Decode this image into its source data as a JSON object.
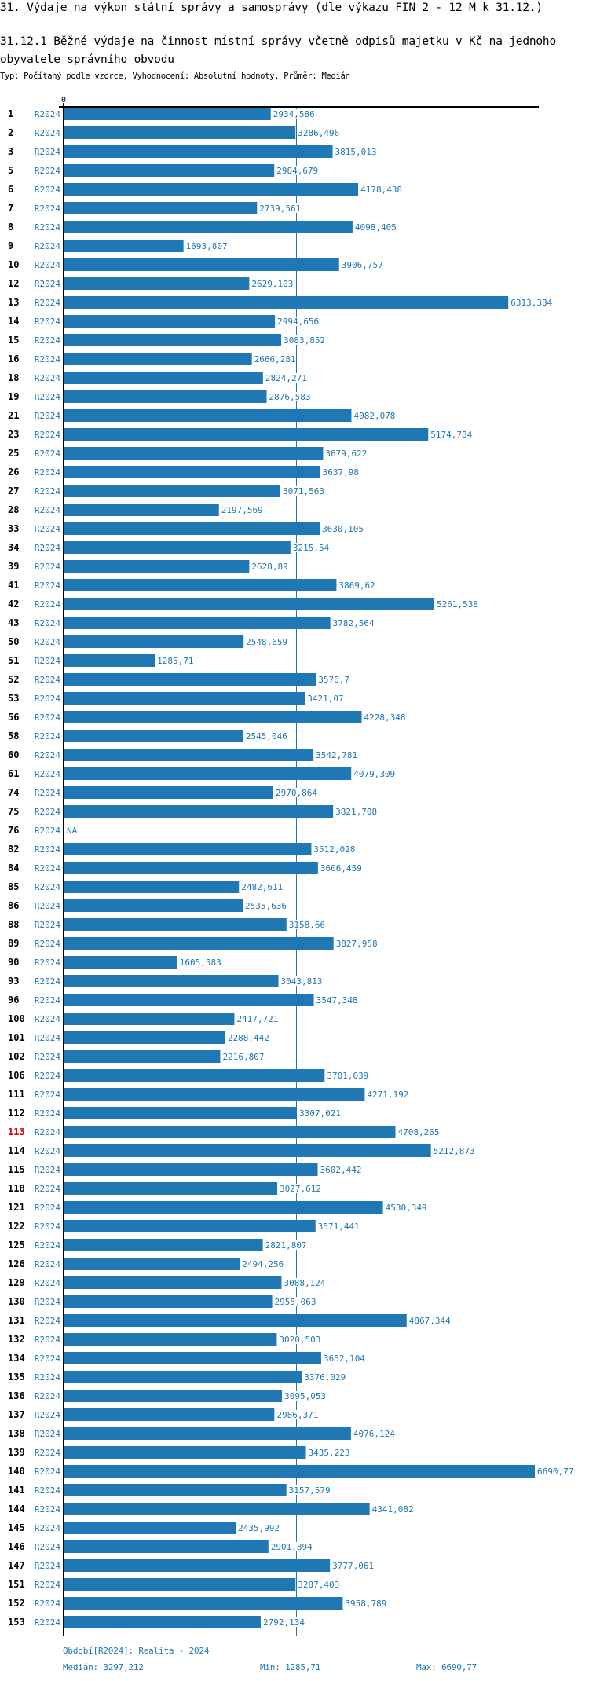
{
  "header": {
    "title": "31. Výdaje na výkon státní správy a samosprávy (dle výkazu FIN 2 - 12 M k 31.12.)",
    "subtitle": "31.12.1 Běžné výdaje na činnost místní správy včetně odpisů majetku v Kč na jednoho obyvatele správního obvodu",
    "meta": "Typ: Počítaný podle vzorce, Vyhodnocení: Absolutní hodnoty, Průměr: Medián"
  },
  "footer": {
    "period": "Období[R2024]: Realita - 2024",
    "median": "Medián: 3297,212",
    "min": "Min: 1285,71",
    "max": "Max: 6690,77"
  },
  "colors": {
    "bar": "#1f77b4",
    "highlight": "#e00000",
    "axis": "#000000"
  },
  "chart_data": {
    "type": "bar",
    "orientation": "horizontal",
    "title": "31.12.1 Běžné výdaje na činnost místní správy včetně odpisů majetku v Kč na jednoho obyvatele správního obvodu",
    "xlabel": "",
    "ylabel": "",
    "xlim": [
      0,
      6690.77
    ],
    "x_tick_labels": [
      "0"
    ],
    "grid": false,
    "series_label": "R2024",
    "reference_line": {
      "name": "Medián",
      "value": 3297.212
    },
    "highlighted_category": "113",
    "categories": [
      "1",
      "2",
      "3",
      "5",
      "6",
      "7",
      "8",
      "9",
      "10",
      "12",
      "13",
      "14",
      "15",
      "16",
      "18",
      "19",
      "21",
      "23",
      "25",
      "26",
      "27",
      "28",
      "33",
      "34",
      "39",
      "41",
      "42",
      "43",
      "50",
      "51",
      "52",
      "53",
      "56",
      "58",
      "60",
      "61",
      "74",
      "75",
      "76",
      "82",
      "84",
      "85",
      "86",
      "88",
      "89",
      "90",
      "93",
      "96",
      "100",
      "101",
      "102",
      "106",
      "111",
      "112",
      "113",
      "114",
      "115",
      "118",
      "121",
      "122",
      "125",
      "126",
      "129",
      "130",
      "131",
      "132",
      "134",
      "135",
      "136",
      "137",
      "138",
      "139",
      "140",
      "141",
      "144",
      "145",
      "146",
      "147",
      "151",
      "152",
      "153"
    ],
    "values": [
      2934.586,
      3286.496,
      3815.013,
      2984.679,
      4178.438,
      2739.561,
      4098.405,
      1693.807,
      3906.757,
      2629.103,
      6313.384,
      2994.656,
      3083.852,
      2666.281,
      2824.271,
      2876.583,
      4082.078,
      5174.784,
      3679.622,
      3637.98,
      3071.563,
      2197.569,
      3630.105,
      3215.54,
      2628.89,
      3869.62,
      5261.538,
      3782.564,
      2548.659,
      1285.71,
      3576.7,
      3421.07,
      4228.348,
      2545.046,
      3542.781,
      4079.309,
      2970.864,
      3821.708,
      null,
      3512.028,
      3606.459,
      2482.611,
      2535.636,
      3158.66,
      3827.958,
      1605.583,
      3043.813,
      3547.348,
      2417.721,
      2288.442,
      2216.807,
      3701.039,
      4271.192,
      3307.021,
      4708.265,
      5212.873,
      3602.442,
      3027.612,
      4530.349,
      3571.441,
      2821.807,
      2494.256,
      3088.124,
      2955.063,
      4867.344,
      3020.503,
      3652.104,
      3376.029,
      3095.053,
      2986.371,
      4076.124,
      3435.223,
      6690.77,
      3157.579,
      4341.082,
      2435.992,
      2901.894,
      3777.061,
      3287.403,
      3958.789,
      2792.134
    ],
    "value_labels": [
      "2934,586",
      "3286,496",
      "3815,013",
      "2984,679",
      "4178,438",
      "2739,561",
      "4098,405",
      "1693,807",
      "3906,757",
      "2629,103",
      "6313,384",
      "2994,656",
      "3083,852",
      "2666,281",
      "2824,271",
      "2876,583",
      "4082,078",
      "5174,784",
      "3679,622",
      "3637,98",
      "3071,563",
      "2197,569",
      "3630,105",
      "3215,54",
      "2628,89",
      "3869,62",
      "5261,538",
      "3782,564",
      "2548,659",
      "1285,71",
      "3576,7",
      "3421,07",
      "4228,348",
      "2545,046",
      "3542,781",
      "4079,309",
      "2970,864",
      "3821,708",
      "NA",
      "3512,028",
      "3606,459",
      "2482,611",
      "2535,636",
      "3158,66",
      "3827,958",
      "1605,583",
      "3043,813",
      "3547,348",
      "2417,721",
      "2288,442",
      "2216,807",
      "3701,039",
      "4271,192",
      "3307,021",
      "4708,265",
      "5212,873",
      "3602,442",
      "3027,612",
      "4530,349",
      "3571,441",
      "2821,807",
      "2494,256",
      "3088,124",
      "2955,063",
      "4867,344",
      "3020,503",
      "3652,104",
      "3376,029",
      "3095,053",
      "2986,371",
      "4076,124",
      "3435,223",
      "6690,77",
      "3157,579",
      "4341,082",
      "2435,992",
      "2901,894",
      "3777,061",
      "3287,403",
      "3958,789",
      "2792,134"
    ]
  }
}
